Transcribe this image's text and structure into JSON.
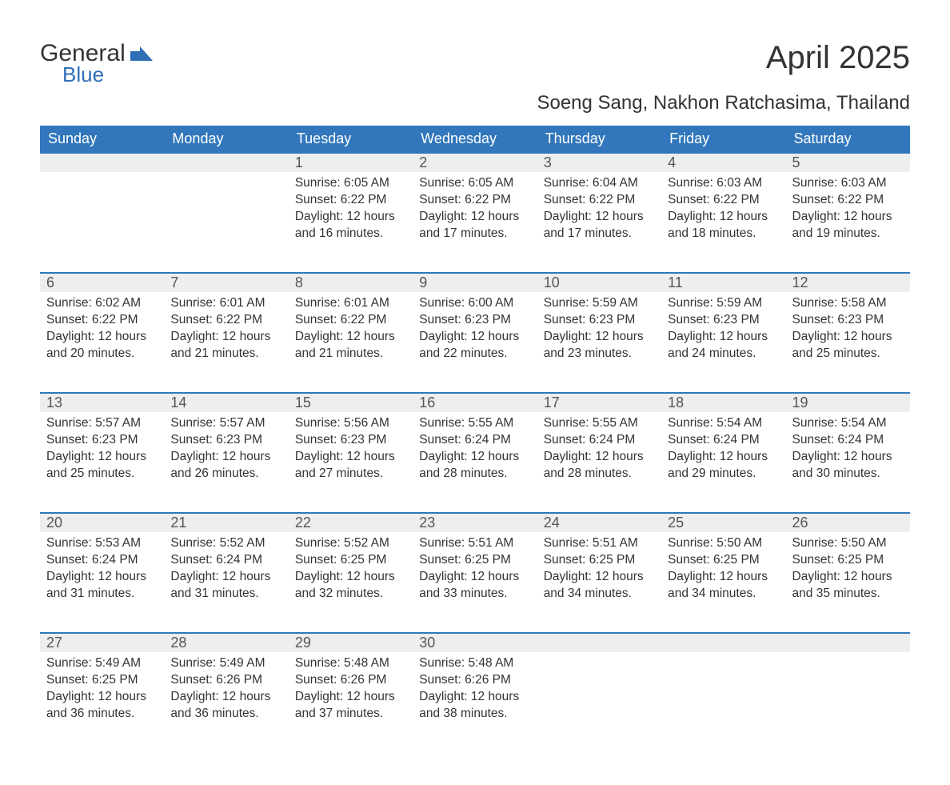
{
  "brand": {
    "part1": "General",
    "part2": "Blue",
    "flag_color": "#2e6fb5"
  },
  "title": "April 2025",
  "location": "Soeng Sang, Nakhon Ratchasima, Thailand",
  "colors": {
    "header_bg": "#3277bb",
    "header_text": "#ffffff",
    "daynum_bg": "#eeeeee",
    "row_divider": "#3277bb",
    "body_text": "#333333",
    "page_bg": "#ffffff"
  },
  "columns": [
    "Sunday",
    "Monday",
    "Tuesday",
    "Wednesday",
    "Thursday",
    "Friday",
    "Saturday"
  ],
  "labels": {
    "sunrise": "Sunrise:",
    "sunset": "Sunset:",
    "daylight": "Daylight:"
  },
  "weeks": [
    [
      {
        "blank": true
      },
      {
        "blank": true
      },
      {
        "day": "1",
        "sunrise": "6:05 AM",
        "sunset": "6:22 PM",
        "daylight": "12 hours and 16 minutes."
      },
      {
        "day": "2",
        "sunrise": "6:05 AM",
        "sunset": "6:22 PM",
        "daylight": "12 hours and 17 minutes."
      },
      {
        "day": "3",
        "sunrise": "6:04 AM",
        "sunset": "6:22 PM",
        "daylight": "12 hours and 17 minutes."
      },
      {
        "day": "4",
        "sunrise": "6:03 AM",
        "sunset": "6:22 PM",
        "daylight": "12 hours and 18 minutes."
      },
      {
        "day": "5",
        "sunrise": "6:03 AM",
        "sunset": "6:22 PM",
        "daylight": "12 hours and 19 minutes."
      }
    ],
    [
      {
        "day": "6",
        "sunrise": "6:02 AM",
        "sunset": "6:22 PM",
        "daylight": "12 hours and 20 minutes."
      },
      {
        "day": "7",
        "sunrise": "6:01 AM",
        "sunset": "6:22 PM",
        "daylight": "12 hours and 21 minutes."
      },
      {
        "day": "8",
        "sunrise": "6:01 AM",
        "sunset": "6:22 PM",
        "daylight": "12 hours and 21 minutes."
      },
      {
        "day": "9",
        "sunrise": "6:00 AM",
        "sunset": "6:23 PM",
        "daylight": "12 hours and 22 minutes."
      },
      {
        "day": "10",
        "sunrise": "5:59 AM",
        "sunset": "6:23 PM",
        "daylight": "12 hours and 23 minutes."
      },
      {
        "day": "11",
        "sunrise": "5:59 AM",
        "sunset": "6:23 PM",
        "daylight": "12 hours and 24 minutes."
      },
      {
        "day": "12",
        "sunrise": "5:58 AM",
        "sunset": "6:23 PM",
        "daylight": "12 hours and 25 minutes."
      }
    ],
    [
      {
        "day": "13",
        "sunrise": "5:57 AM",
        "sunset": "6:23 PM",
        "daylight": "12 hours and 25 minutes."
      },
      {
        "day": "14",
        "sunrise": "5:57 AM",
        "sunset": "6:23 PM",
        "daylight": "12 hours and 26 minutes."
      },
      {
        "day": "15",
        "sunrise": "5:56 AM",
        "sunset": "6:23 PM",
        "daylight": "12 hours and 27 minutes."
      },
      {
        "day": "16",
        "sunrise": "5:55 AM",
        "sunset": "6:24 PM",
        "daylight": "12 hours and 28 minutes."
      },
      {
        "day": "17",
        "sunrise": "5:55 AM",
        "sunset": "6:24 PM",
        "daylight": "12 hours and 28 minutes."
      },
      {
        "day": "18",
        "sunrise": "5:54 AM",
        "sunset": "6:24 PM",
        "daylight": "12 hours and 29 minutes."
      },
      {
        "day": "19",
        "sunrise": "5:54 AM",
        "sunset": "6:24 PM",
        "daylight": "12 hours and 30 minutes."
      }
    ],
    [
      {
        "day": "20",
        "sunrise": "5:53 AM",
        "sunset": "6:24 PM",
        "daylight": "12 hours and 31 minutes."
      },
      {
        "day": "21",
        "sunrise": "5:52 AM",
        "sunset": "6:24 PM",
        "daylight": "12 hours and 31 minutes."
      },
      {
        "day": "22",
        "sunrise": "5:52 AM",
        "sunset": "6:25 PM",
        "daylight": "12 hours and 32 minutes."
      },
      {
        "day": "23",
        "sunrise": "5:51 AM",
        "sunset": "6:25 PM",
        "daylight": "12 hours and 33 minutes."
      },
      {
        "day": "24",
        "sunrise": "5:51 AM",
        "sunset": "6:25 PM",
        "daylight": "12 hours and 34 minutes."
      },
      {
        "day": "25",
        "sunrise": "5:50 AM",
        "sunset": "6:25 PM",
        "daylight": "12 hours and 34 minutes."
      },
      {
        "day": "26",
        "sunrise": "5:50 AM",
        "sunset": "6:25 PM",
        "daylight": "12 hours and 35 minutes."
      }
    ],
    [
      {
        "day": "27",
        "sunrise": "5:49 AM",
        "sunset": "6:25 PM",
        "daylight": "12 hours and 36 minutes."
      },
      {
        "day": "28",
        "sunrise": "5:49 AM",
        "sunset": "6:26 PM",
        "daylight": "12 hours and 36 minutes."
      },
      {
        "day": "29",
        "sunrise": "5:48 AM",
        "sunset": "6:26 PM",
        "daylight": "12 hours and 37 minutes."
      },
      {
        "day": "30",
        "sunrise": "5:48 AM",
        "sunset": "6:26 PM",
        "daylight": "12 hours and 38 minutes."
      },
      {
        "blank": true
      },
      {
        "blank": true
      },
      {
        "blank": true
      }
    ]
  ]
}
